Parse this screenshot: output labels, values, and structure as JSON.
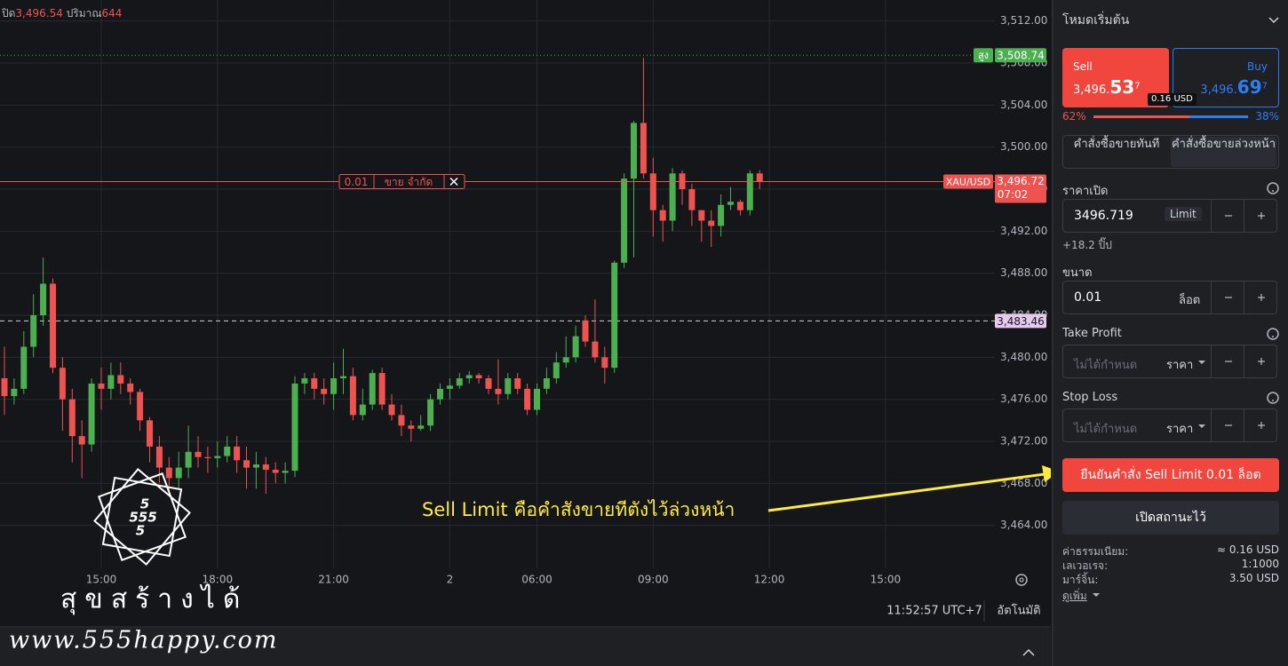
{
  "header": {
    "close_label": "ปิด",
    "close_value": "3,496.54",
    "volume_label": "ปริมาณ",
    "volume_value": "644"
  },
  "chart_data": {
    "type": "candlestick",
    "symbol": "XAU/USD",
    "up_color": "#4caf50",
    "down_color": "#ef5350",
    "categories": [
      null,
      null,
      null,
      null,
      null,
      null,
      null,
      null,
      null,
      null,
      "15:00",
      null,
      null,
      null,
      null,
      null,
      null,
      null,
      null,
      null,
      null,
      null,
      "18:00",
      null,
      null,
      null,
      null,
      null,
      null,
      null,
      null,
      null,
      null,
      null,
      "21:00",
      null,
      null,
      null,
      null,
      null,
      null,
      null,
      null,
      null,
      null,
      null,
      "2",
      null,
      null,
      null,
      null,
      null,
      null,
      null,
      null,
      "06:00",
      null,
      null,
      null,
      null,
      null,
      null,
      null,
      null,
      null,
      null,
      null,
      "09:00",
      null,
      null,
      null,
      null,
      null,
      null,
      null,
      null,
      null,
      null,
      null,
      "12:00",
      null,
      null,
      null,
      null,
      null,
      null,
      null,
      null,
      null,
      null,
      null,
      "15:00"
    ],
    "open": [
      3478,
      3476.3,
      3477,
      3481,
      3484,
      3487,
      3479,
      3476,
      3472.5,
      3471.7,
      3477.5,
      3477,
      3478.3,
      3477.5,
      3476.7,
      3474,
      3471.5,
      3469.5,
      3468.5,
      3469.5,
      3471,
      3470.5,
      3470.4,
      3470.6,
      3471.5,
      3470.2,
      3469.5,
      3469.8,
      3469.3,
      3469,
      3469.2,
      3477.5,
      3478,
      3477,
      3476.5,
      3478,
      3478.2,
      3474.5,
      3475.5,
      3478.5,
      3475.5,
      3474.5,
      3473.5,
      3473.2,
      3473.5,
      3476,
      3477,
      3477.3,
      3478,
      3478.3,
      3478,
      3477,
      3476.5,
      3478,
      3477,
      3475,
      3477,
      3478,
      3479.5,
      3480,
      3483.5,
      3481.5,
      3480,
      3479,
      3489,
      3497,
      3502.3,
      3497.5,
      3494,
      3493,
      3497.5,
      3496,
      3494,
      3493,
      3492.5,
      3494.5,
      3494.8,
      3494,
      3497.5,
      null,
      null,
      null,
      null,
      null,
      null,
      null,
      null,
      null,
      null,
      null,
      null,
      null
    ],
    "high": [
      3481,
      3478,
      3482.5,
      3486,
      3489.5,
      3487.5,
      3480,
      3477,
      3474,
      3478,
      3479,
      3479.5,
      3479.5,
      3478,
      3477,
      3474.3,
      3472.5,
      3470.5,
      3471,
      3473.5,
      3472.5,
      3471.5,
      3472,
      3472.5,
      3472.5,
      3471.5,
      3471,
      3470.5,
      3470,
      3470,
      3478.2,
      3478.5,
      3478.5,
      3478,
      3479.5,
      3480.8,
      3479,
      3477,
      3478.8,
      3479,
      3476.5,
      3475.5,
      3474,
      3474.5,
      3476.5,
      3477.5,
      3478,
      3478.5,
      3478.7,
      3478.5,
      3478.3,
      3479.8,
      3478.5,
      3478.5,
      3477.5,
      3477.5,
      3479,
      3480.5,
      3482,
      3483,
      3484,
      3485.5,
      3481,
      3489.2,
      3497.5,
      3502.5,
      3508.5,
      3499,
      3494.5,
      3498,
      3497.8,
      3496.5,
      3494,
      3494,
      3495.5,
      3496.2,
      3495,
      3497.8,
      3497.8,
      null,
      null,
      null,
      null,
      null,
      null,
      null,
      null,
      null,
      null,
      null,
      null,
      null
    ],
    "low": [
      3474.5,
      3475.5,
      3476.5,
      3480,
      3483,
      3478.5,
      3473,
      3470,
      3468.5,
      3471,
      3475,
      3476,
      3476.5,
      3475.5,
      3473,
      3470,
      3468,
      3467,
      3467.5,
      3468.5,
      3469.5,
      3469,
      3469.5,
      3470,
      3469,
      3467.5,
      3467.5,
      3467,
      3468,
      3468,
      3468.6,
      3476.5,
      3476,
      3475.5,
      3475,
      3476.5,
      3474,
      3474,
      3475,
      3475,
      3474,
      3472.5,
      3472,
      3473,
      3473,
      3475.5,
      3476,
      3477,
      3477.5,
      3477.5,
      3476.5,
      3475.5,
      3476,
      3476.5,
      3474.5,
      3474.5,
      3476.5,
      3477.5,
      3479,
      3479.5,
      3481,
      3479.5,
      3477.5,
      3478.5,
      3488.5,
      3489.5,
      3497,
      3491.5,
      3491,
      3492,
      3494.5,
      3492.5,
      3491,
      3490.5,
      3491.5,
      3494,
      3493.5,
      3493.5,
      3496,
      null,
      null,
      null,
      null,
      null,
      null,
      null,
      null,
      null,
      null,
      null,
      null,
      null
    ],
    "close": [
      3476.3,
      3477,
      3481,
      3484,
      3487,
      3479,
      3476,
      3472.5,
      3471.7,
      3477.5,
      3477,
      3478.3,
      3477.5,
      3476.7,
      3474,
      3471.5,
      3469.5,
      3468.5,
      3469.5,
      3471,
      3470.5,
      3470.4,
      3470.6,
      3471.5,
      3470.2,
      3469.5,
      3469.8,
      3469.3,
      3469,
      3469.2,
      3477.5,
      3478,
      3477,
      3476.5,
      3478,
      3478.2,
      3474.5,
      3475.5,
      3478.5,
      3475.5,
      3474.5,
      3473.5,
      3473.2,
      3473.5,
      3476,
      3477,
      3477.3,
      3478,
      3478.3,
      3478,
      3477,
      3476.5,
      3478,
      3477,
      3475,
      3477,
      3478,
      3479.5,
      3480,
      3482,
      3481.5,
      3480,
      3479,
      3489,
      3497,
      3502.3,
      3497.5,
      3494,
      3493,
      3497.5,
      3496,
      3494,
      3493,
      3492.5,
      3494.5,
      3494.8,
      3494,
      3497.5,
      3496.7,
      null,
      null,
      null,
      null,
      null,
      null,
      null,
      null,
      null,
      null,
      null,
      null,
      null
    ],
    "ylim": [
      3460,
      3514
    ],
    "yticks": [
      {
        "value": 3464,
        "label": "3,464.00"
      },
      {
        "value": 3468,
        "label": "3,468.00"
      },
      {
        "value": 3472,
        "label": "3,472.00"
      },
      {
        "value": 3476,
        "label": "3,476.00"
      },
      {
        "value": 3480,
        "label": "3,480.00"
      },
      {
        "value": 3484,
        "label": "3,484.00"
      },
      {
        "value": 3488,
        "label": "3,488.00"
      },
      {
        "value": 3492,
        "label": "3,492.00"
      },
      {
        "value": 3496,
        "label": "3,496.00"
      },
      {
        "value": 3500,
        "label": "3,500.00"
      },
      {
        "value": 3504,
        "label": "3,504.00"
      },
      {
        "value": 3508,
        "label": "3,508.00"
      },
      {
        "value": 3512,
        "label": "3,512.00"
      }
    ],
    "grid": true,
    "high_marker": {
      "label": "สูง",
      "price": {
        "value": 3508.74,
        "label": "3,508.74"
      },
      "color": "#4caf50"
    },
    "last_price": {
      "price": {
        "value": 3496.72,
        "label": "3,496.72"
      },
      "countdown": "07:02",
      "color": "#ef5350"
    },
    "crosshair": {
      "value": 3483.46,
      "label": "3,483.46"
    },
    "pending_order": {
      "size": "0.01",
      "label": "ขาย จำกัด"
    }
  },
  "annotation": {
    "text": "Sell Limit คือคำสังขายทีตังไว้ล่วงหน้า"
  },
  "watermark": {
    "logo": [
      "5",
      "555",
      "5"
    ],
    "slogan": "สุขสร้างได้",
    "url": "www.555happy.com"
  },
  "status_bar": {
    "time": "11:52:57 UTC+7",
    "scale_mode": "อัตโนมัติ"
  },
  "order_panel": {
    "mode": "โหมดเริ่มต้น",
    "sell": {
      "label": "Sell",
      "price_main": "3,496.",
      "price_big": "53",
      "price_small": "7"
    },
    "buy": {
      "label": "Buy",
      "price_main": "3,496.",
      "price_big": "69",
      "price_small": "7"
    },
    "spread": "0.16 USD",
    "sentiment": {
      "sell": {
        "value": 62,
        "label": "62%"
      },
      "buy": {
        "value": 38,
        "label": "38%"
      }
    },
    "tabs": [
      "คำสั่งซื้อขายทันที",
      "คำสั่งซื้อขายล่วงหน้า"
    ],
    "open_price": {
      "label": "ราคาเปิด",
      "value": "3496.719",
      "type": "Limit",
      "hint": "+18.2 ปิ๊ป"
    },
    "size": {
      "label": "ขนาด",
      "value": "0.01",
      "unit": "ล็อต"
    },
    "take_profit": {
      "label": "Take Profit",
      "placeholder": "ไม่ได้กำหนด",
      "mode": "ราคา"
    },
    "stop_loss": {
      "label": "Stop Loss",
      "placeholder": "ไม่ได้กำหนด",
      "mode": "ราคา"
    },
    "confirm_button": "ยืนยันคำสั่ง Sell Limit 0.01 ล็อต",
    "open_positions_button": "เปิดสถานะไว้",
    "details": [
      {
        "label": "ค่าธรรมเนียม:",
        "value": "≈ 0.16 USD"
      },
      {
        "label": "เลเวอเรจ:",
        "value": "1:1000"
      },
      {
        "label": "มาร์จิ้น:",
        "value": "3.50 USD"
      }
    ],
    "more": "ดูเพิ่ม"
  }
}
